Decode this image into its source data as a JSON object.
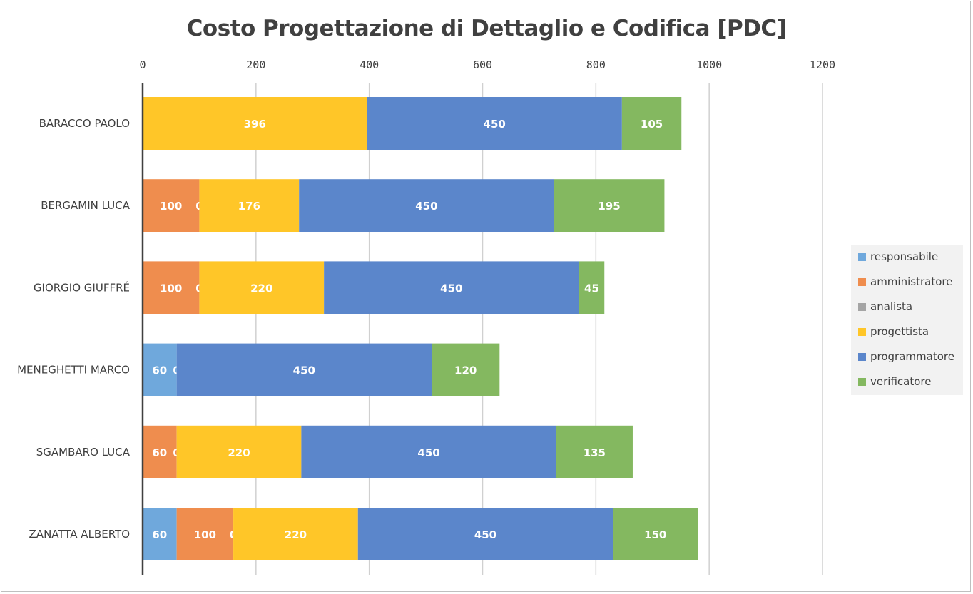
{
  "chart_data": {
    "type": "bar",
    "orientation": "horizontal",
    "stacked": true,
    "title": "Costo Progettazione di Dettaglio e Codifica [PDC]",
    "xlim": [
      0,
      1200
    ],
    "x_ticks": [
      "0",
      "200",
      "400",
      "600",
      "800",
      "1000",
      "1200"
    ],
    "x_tick_values": [
      0,
      200,
      400,
      600,
      800,
      1000,
      1200
    ],
    "x_axis_position": "top",
    "grid": true,
    "legend_position": "right",
    "categories": [
      "BARACCO PAOLO",
      "BERGAMIN LUCA",
      "GIORGIO GIUFFRÉ",
      "MENEGHETTI MARCO",
      "SGAMBARO LUCA",
      "ZANATTA ALBERTO"
    ],
    "series": [
      {
        "name": "responsabile",
        "color": "#6fa8dc",
        "values": [
          0,
          0,
          0,
          60,
          0,
          60
        ],
        "labels": [
          "0",
          "0",
          "0",
          "60",
          "0",
          "60"
        ]
      },
      {
        "name": "amministratore",
        "color": "#ef8d4e",
        "values": [
          0,
          100,
          100,
          0,
          60,
          100
        ],
        "labels": [
          "",
          "100",
          "100",
          "",
          "60",
          "100"
        ]
      },
      {
        "name": "analista",
        "color": "#a5a5a5",
        "values": [
          0,
          0,
          0,
          0,
          0,
          0
        ],
        "labels": [
          "",
          "0",
          "0",
          "0",
          "0",
          "0"
        ]
      },
      {
        "name": "progettista",
        "color": "#ffc628",
        "values": [
          396,
          176,
          220,
          0,
          220,
          220
        ],
        "labels": [
          "396",
          "176",
          "220",
          "",
          "220",
          "220"
        ]
      },
      {
        "name": "programmatore",
        "color": "#5b86cb",
        "values": [
          450,
          450,
          450,
          450,
          450,
          450
        ],
        "labels": [
          "450",
          "450",
          "450",
          "450",
          "450",
          "450"
        ]
      },
      {
        "name": "verificatore",
        "color": "#84b860",
        "values": [
          105,
          195,
          45,
          120,
          135,
          150
        ],
        "labels": [
          "105",
          "195",
          "45",
          "120",
          "135",
          "150"
        ]
      }
    ]
  }
}
